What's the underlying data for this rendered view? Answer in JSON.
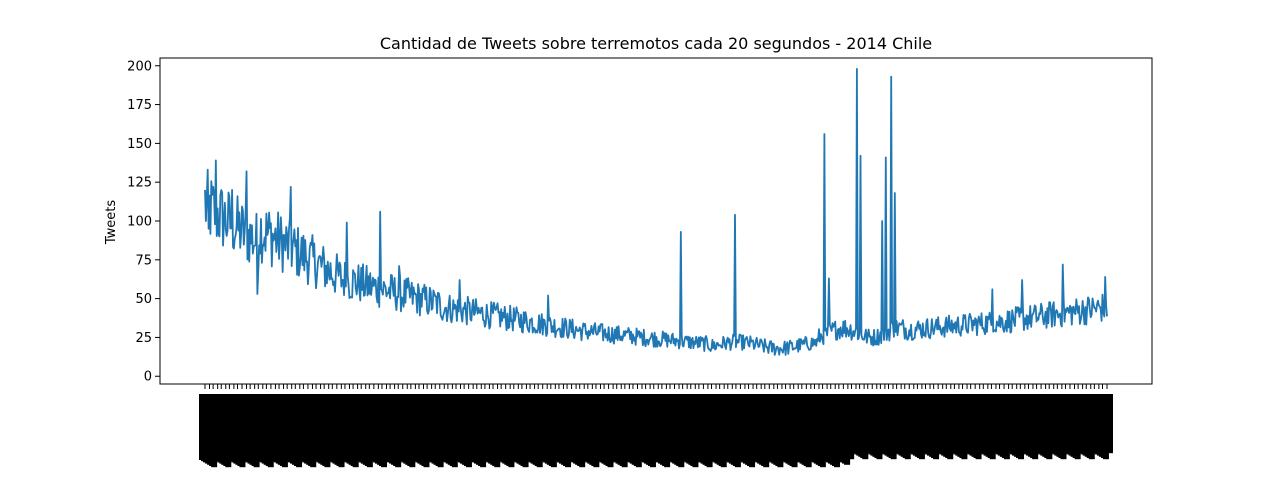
{
  "chart_data": {
    "type": "line",
    "title": "Cantidad de Tweets sobre terremotos cada 20 segundos - 2014 Chile",
    "xlabel": "",
    "ylabel": "Tweets",
    "ylim": [
      -5,
      205
    ],
    "yticks": [
      0,
      25,
      50,
      75,
      100,
      125,
      150,
      175,
      200
    ],
    "grid": false,
    "line_color": "#1f77b4",
    "x_tick_labels_note": "",
    "x_points": 1000,
    "series": [
      {
        "name": "",
        "peaks": [
          {
            "x": 0,
            "y": 120
          },
          {
            "x": 4,
            "y": 95
          },
          {
            "x": 12,
            "y": 139
          },
          {
            "x": 30,
            "y": 120
          },
          {
            "x": 46,
            "y": 132
          },
          {
            "x": 58,
            "y": 53
          },
          {
            "x": 95,
            "y": 122
          },
          {
            "x": 157,
            "y": 99
          },
          {
            "x": 194,
            "y": 106
          },
          {
            "x": 215,
            "y": 71
          },
          {
            "x": 282,
            "y": 62
          },
          {
            "x": 380,
            "y": 52
          },
          {
            "x": 527,
            "y": 93
          },
          {
            "x": 587,
            "y": 104
          },
          {
            "x": 686,
            "y": 156
          },
          {
            "x": 691,
            "y": 63
          },
          {
            "x": 722,
            "y": 198
          },
          {
            "x": 726,
            "y": 142
          },
          {
            "x": 750,
            "y": 100
          },
          {
            "x": 754,
            "y": 141
          },
          {
            "x": 760,
            "y": 193
          },
          {
            "x": 764,
            "y": 118
          },
          {
            "x": 872,
            "y": 56
          },
          {
            "x": 905,
            "y": 62
          },
          {
            "x": 950,
            "y": 72
          },
          {
            "x": 997,
            "y": 64
          }
        ]
      }
    ]
  }
}
